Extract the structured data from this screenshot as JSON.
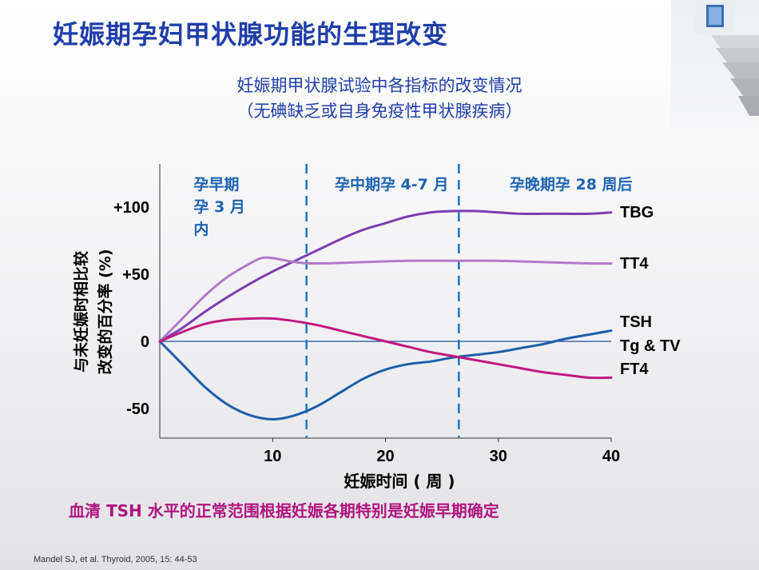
{
  "slide": {
    "title": "妊娠期孕妇甲状腺功能的生理改变",
    "subtitle_line1": "妊娠期甲状腺试验中各指标的改变情况",
    "subtitle_line2": "（无碘缺乏或自身免疫性甲状腺疾病）",
    "note": "血清 TSH 水平的正常范围根据妊娠各期特别是妊娠早期确定",
    "citation": "Mandel SJ, et al.  Thyroid, 2005, 15: 44-53"
  },
  "colors": {
    "title": "#1f3ea8",
    "note": "#b0147f",
    "tbg": "#7b3fb0",
    "tt4": "#b07ac8",
    "ft4": "#c0187f",
    "tsh": "#1d5ea8",
    "divider": "#1e72c2",
    "trimester_label": "#1e63b0"
  },
  "chart_data": {
    "type": "line",
    "xlabel": "妊娠时间 ( 周 )",
    "ylabel_line1": "与未妊娠时相比较",
    "ylabel_line2": "改变的百分率 (%)",
    "xlim": [
      0,
      40
    ],
    "ylim": [
      -70,
      110
    ],
    "xticks": [
      10,
      20,
      30,
      40
    ],
    "xtick_labels": [
      "10",
      "20",
      "30",
      "40"
    ],
    "yticks": [
      100,
      50,
      0,
      -50
    ],
    "ytick_labels": [
      "+100",
      "+50",
      "0",
      "-50"
    ],
    "grid": false,
    "trimester_dividers": [
      13,
      26.5
    ],
    "trimester_labels": [
      {
        "text": "孕早期\n孕 3 月\n内",
        "x": 3
      },
      {
        "text": "孕中期孕 4-7 月",
        "x": 15.5
      },
      {
        "text": "孕晚期孕 28 周后",
        "x": 31
      }
    ],
    "series": [
      {
        "name": "TBG",
        "color_key": "tbg",
        "points": [
          [
            0,
            0
          ],
          [
            2,
            10
          ],
          [
            4,
            22
          ],
          [
            6,
            33
          ],
          [
            8,
            43
          ],
          [
            10,
            52
          ],
          [
            12,
            60
          ],
          [
            14,
            68
          ],
          [
            16,
            76
          ],
          [
            18,
            83
          ],
          [
            20,
            88
          ],
          [
            22,
            93
          ],
          [
            24,
            96
          ],
          [
            26,
            97
          ],
          [
            28,
            97
          ],
          [
            30,
            96
          ],
          [
            32,
            95
          ],
          [
            34,
            95
          ],
          [
            36,
            95
          ],
          [
            38,
            95
          ],
          [
            40,
            96
          ]
        ]
      },
      {
        "name": "TT4",
        "color_key": "tt4",
        "points": [
          [
            0,
            0
          ],
          [
            2,
            17
          ],
          [
            4,
            34
          ],
          [
            6,
            48
          ],
          [
            8,
            58
          ],
          [
            9,
            62
          ],
          [
            10,
            62
          ],
          [
            12,
            59
          ],
          [
            14,
            58
          ],
          [
            18,
            59
          ],
          [
            22,
            60
          ],
          [
            26,
            60
          ],
          [
            30,
            60
          ],
          [
            34,
            59
          ],
          [
            38,
            58
          ],
          [
            40,
            58
          ]
        ]
      },
      {
        "name": "TSH\nTg & TV",
        "color_key": "tsh",
        "points": [
          [
            0,
            0
          ],
          [
            2,
            -17
          ],
          [
            4,
            -34
          ],
          [
            6,
            -47
          ],
          [
            8,
            -55
          ],
          [
            10,
            -58
          ],
          [
            12,
            -55
          ],
          [
            14,
            -48
          ],
          [
            16,
            -38
          ],
          [
            18,
            -28
          ],
          [
            20,
            -21
          ],
          [
            22,
            -17
          ],
          [
            24,
            -15
          ],
          [
            26,
            -12
          ],
          [
            28,
            -10
          ],
          [
            30,
            -8
          ],
          [
            32,
            -5
          ],
          [
            34,
            -2
          ],
          [
            36,
            2
          ],
          [
            38,
            5
          ],
          [
            40,
            8
          ]
        ]
      },
      {
        "name": "FT4",
        "color_key": "ft4",
        "points": [
          [
            0,
            0
          ],
          [
            2,
            7
          ],
          [
            4,
            13
          ],
          [
            6,
            16
          ],
          [
            8,
            17
          ],
          [
            10,
            17
          ],
          [
            12,
            15
          ],
          [
            14,
            12
          ],
          [
            16,
            8
          ],
          [
            18,
            4
          ],
          [
            20,
            0
          ],
          [
            22,
            -4
          ],
          [
            24,
            -8
          ],
          [
            26,
            -11
          ],
          [
            28,
            -14
          ],
          [
            30,
            -17
          ],
          [
            32,
            -20
          ],
          [
            34,
            -23
          ],
          [
            36,
            -25
          ],
          [
            38,
            -27
          ],
          [
            40,
            -27
          ]
        ]
      }
    ]
  }
}
